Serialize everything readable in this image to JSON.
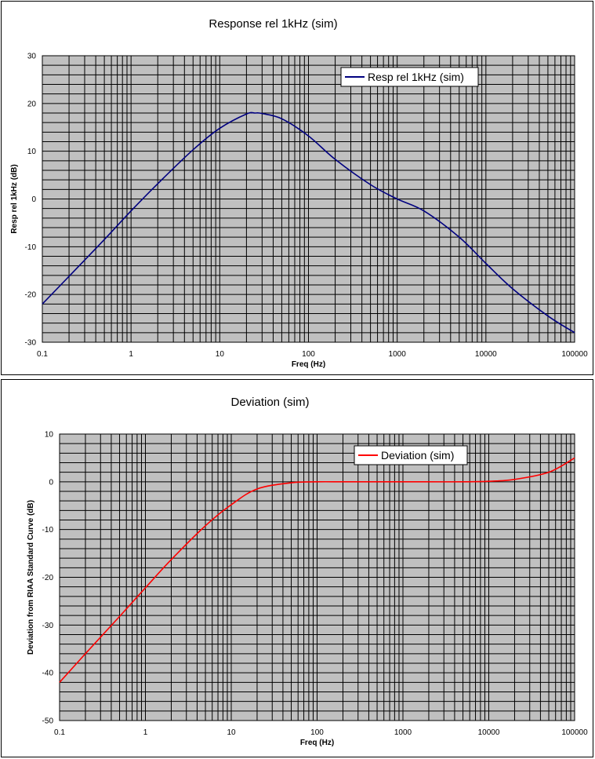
{
  "chart_data": [
    {
      "type": "line",
      "title": "Response rel 1kHz (sim)",
      "xlabel": "Freq (Hz)",
      "ylabel": "Resp rel 1kHz (dB)",
      "xscale": "log",
      "xlim": [
        0.1,
        100000
      ],
      "ylim": [
        -30,
        30
      ],
      "xticks": [
        "0.1",
        "1",
        "10",
        "100",
        "1000",
        "10000",
        "100000"
      ],
      "yticks": [
        "30",
        "20",
        "10",
        "0",
        "-10",
        "-20",
        "-30"
      ],
      "grid": true,
      "plot_background": "#c0c0c0",
      "legend": "top-right",
      "series": [
        {
          "name": "Resp rel 1kHz (sim)",
          "color": "#000080",
          "x": [
            0.1,
            0.2,
            0.5,
            1,
            2,
            5,
            10,
            20,
            25,
            30,
            50,
            100,
            200,
            500,
            1000,
            2000,
            5000,
            10000,
            20000,
            50000,
            100000
          ],
          "y": [
            -22,
            -16.2,
            -8.5,
            -2.5,
            3.2,
            10.3,
            14.8,
            17.8,
            18,
            17.9,
            16.8,
            13.2,
            8.3,
            3,
            0,
            -2.5,
            -8,
            -13.5,
            -18.8,
            -24.5,
            -28
          ]
        }
      ]
    },
    {
      "type": "line",
      "title": "Deviation (sim)",
      "xlabel": "Freq (Hz)",
      "ylabel": "Deviation from RIAA Standard Curve (dB)",
      "xscale": "log",
      "xlim": [
        0.1,
        100000
      ],
      "ylim": [
        -50,
        10
      ],
      "xticks": [
        "0.1",
        "1",
        "10",
        "100",
        "1000",
        "10000",
        "100000"
      ],
      "yticks": [
        "10",
        "0",
        "-10",
        "-20",
        "-30",
        "-40",
        "-50"
      ],
      "grid": true,
      "plot_background": "#c0c0c0",
      "legend": "top-right",
      "series": [
        {
          "name": "Deviation (sim)",
          "color": "#ff0000",
          "x": [
            0.1,
            0.2,
            0.5,
            1,
            2,
            5,
            10,
            20,
            50,
            100,
            200,
            500,
            1000,
            2000,
            5000,
            10000,
            20000,
            50000,
            100000
          ],
          "y": [
            -42,
            -36,
            -28.2,
            -22.2,
            -16.3,
            -9.2,
            -4.8,
            -1.5,
            -0.2,
            0,
            0,
            0,
            0,
            0,
            0,
            0.1,
            0.5,
            2,
            5
          ]
        }
      ]
    }
  ]
}
